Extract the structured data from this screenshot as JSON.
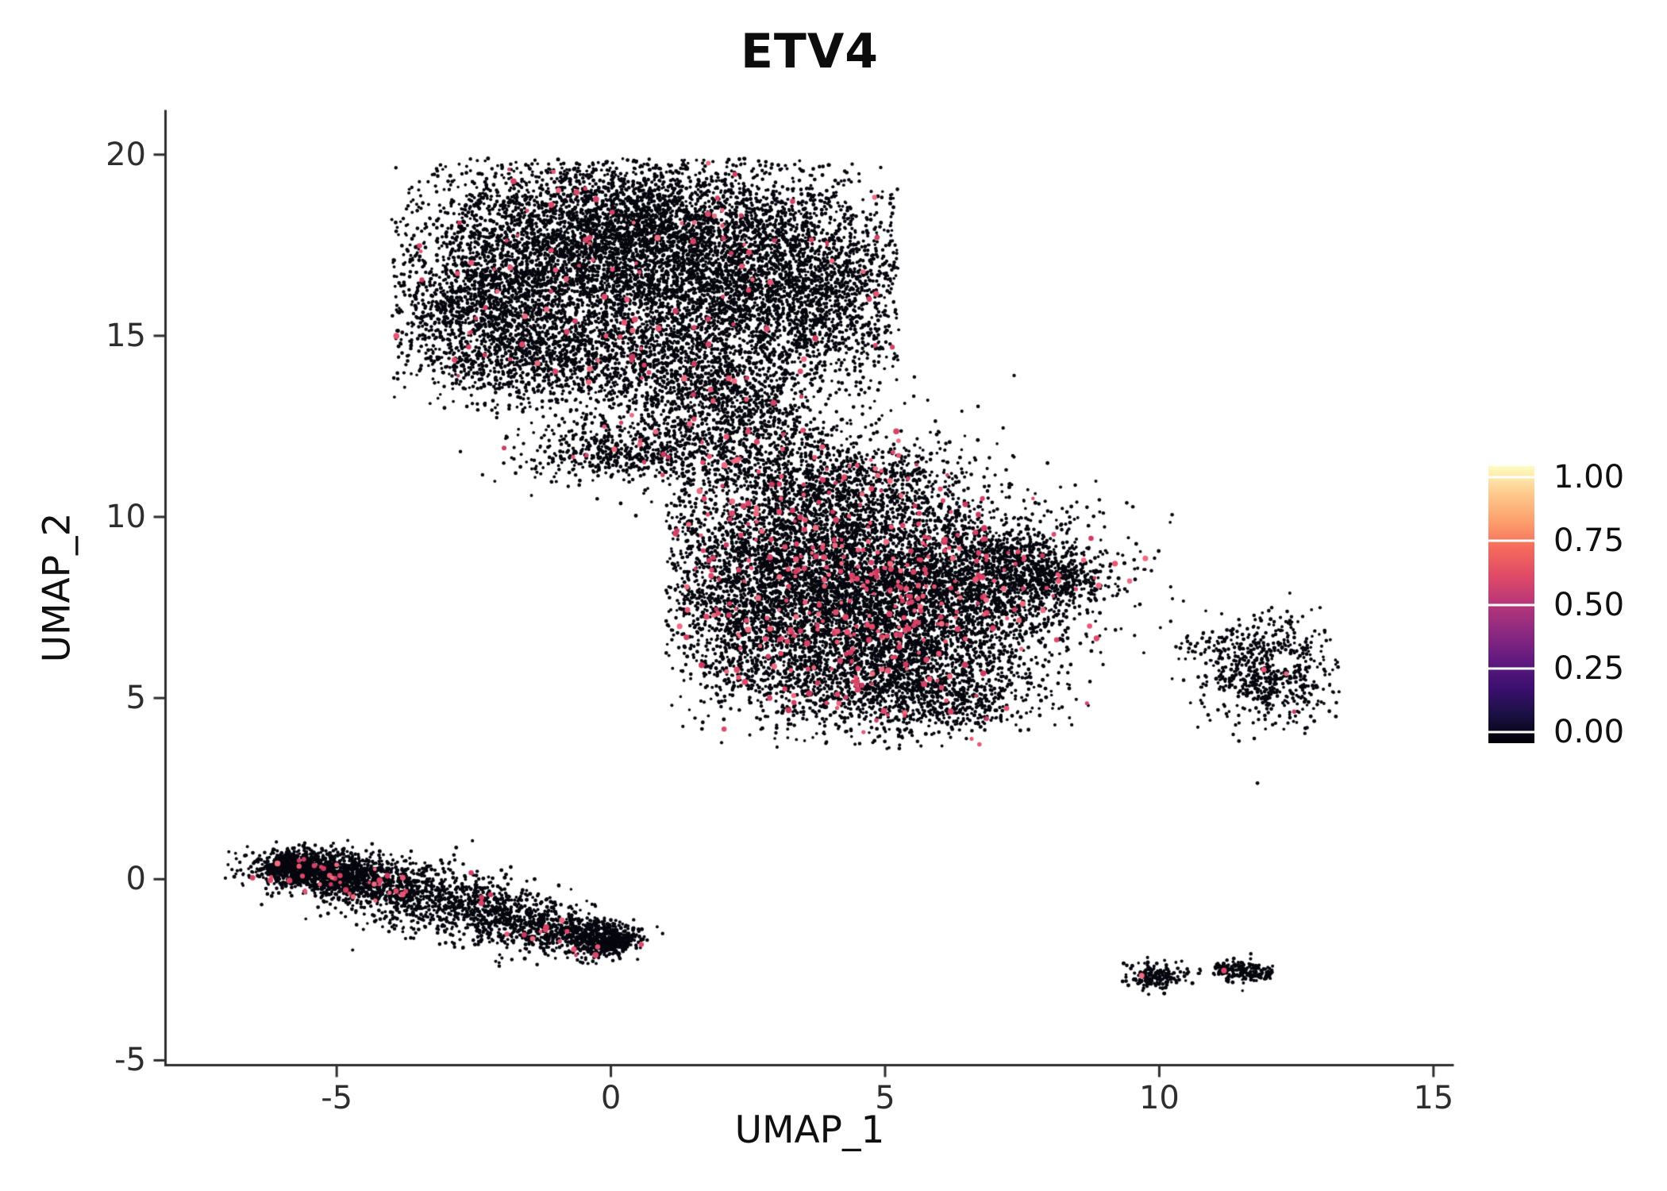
{
  "chart_data": {
    "type": "scatter",
    "title": "ETV4",
    "xlabel": "UMAP_1",
    "ylabel": "UMAP_2",
    "x_ticks": [
      -5,
      0,
      5,
      10,
      15
    ],
    "y_ticks": [
      -5,
      0,
      5,
      10,
      15,
      20
    ],
    "xlim": [
      -8.1,
      15.35
    ],
    "ylim": [
      -5.1,
      21.2
    ],
    "grid": false,
    "legend_position": "right",
    "background": "#FFFFFF",
    "point_color": "#06060E",
    "highlight_palette": [
      "#E0486A",
      "#D84166",
      "#EA5574",
      "#CE3A60",
      "#F06A80"
    ],
    "point_radius": 2.1,
    "highlight_radius": 3.0,
    "seed": 1337,
    "colorbar": {
      "tick_labels": [
        "1.00",
        "0.75",
        "0.50",
        "0.25",
        "0.00"
      ],
      "tick_values": [
        1.0,
        0.75,
        0.5,
        0.25,
        0.0
      ],
      "gradient_top_to_bottom": [
        "#FCFDBF",
        "#FEC98D",
        "#FD9F6C",
        "#F4695C",
        "#DE4968",
        "#B63679",
        "#8C2981",
        "#631A80",
        "#3B0F70",
        "#1A1042",
        "#000004"
      ]
    },
    "clusters": [
      {
        "name": "upper-left-large-blob",
        "clip": {
          "ymax": 19.9,
          "xmin": -4.0,
          "xmax": 5.25
        },
        "blobs": [
          {
            "cx": -0.6,
            "cy": 17.1,
            "sx": 1.55,
            "sy": 1.35,
            "n": 3300,
            "pink": 0.012
          },
          {
            "cx": 1.9,
            "cy": 16.9,
            "sx": 1.5,
            "sy": 1.4,
            "n": 2900,
            "pink": 0.012
          },
          {
            "cx": 3.8,
            "cy": 16.2,
            "sx": 0.95,
            "sy": 1.25,
            "n": 1300,
            "pink": 0.01
          },
          {
            "cx": -2.4,
            "cy": 15.7,
            "sx": 0.85,
            "sy": 0.95,
            "n": 900,
            "pink": 0.012
          },
          {
            "cx": -1.4,
            "cy": 14.3,
            "sx": 1.1,
            "sy": 0.6,
            "n": 650,
            "pink": 0.012
          },
          {
            "cx": 1.1,
            "cy": 14.2,
            "sx": 1.3,
            "sy": 0.8,
            "n": 900,
            "pink": 0.015
          },
          {
            "cx": 0.4,
            "cy": 18.55,
            "sx": 1.6,
            "sy": 0.7,
            "n": 700,
            "pink": 0.01
          }
        ]
      },
      {
        "name": "bridge-between-blobs",
        "clip": {},
        "blobs": [
          {
            "cx": 0.25,
            "cy": 11.8,
            "sx": 0.95,
            "sy": 0.42,
            "n": 520,
            "pink": 0.02
          },
          {
            "cx": 1.8,
            "cy": 12.4,
            "sx": 1.0,
            "sy": 0.8,
            "n": 420,
            "pink": 0.02
          },
          {
            "cx": 2.9,
            "cy": 12.0,
            "sx": 0.75,
            "sy": 0.95,
            "n": 330,
            "pink": 0.02
          },
          {
            "cx": 2.2,
            "cy": 13.5,
            "sx": 0.6,
            "sy": 0.55,
            "n": 220,
            "pink": 0.015
          }
        ]
      },
      {
        "name": "central-large-blob-high-expression",
        "clip": {
          "xmin": 1.0,
          "ymin": 3.6
        },
        "blobs": [
          {
            "cx": 3.6,
            "cy": 8.9,
            "sx": 1.5,
            "sy": 1.5,
            "n": 3400,
            "pink": 0.045
          },
          {
            "cx": 5.4,
            "cy": 7.6,
            "sx": 1.5,
            "sy": 1.35,
            "n": 2900,
            "pink": 0.045
          },
          {
            "cx": 4.5,
            "cy": 5.7,
            "sx": 1.3,
            "sy": 0.85,
            "n": 1400,
            "pink": 0.03
          },
          {
            "cx": 6.9,
            "cy": 8.5,
            "sx": 0.9,
            "sy": 0.8,
            "n": 900,
            "pink": 0.035
          },
          {
            "cx": 8.1,
            "cy": 8.3,
            "sx": 0.55,
            "sy": 0.4,
            "n": 380,
            "pink": 0.02
          },
          {
            "cx": 4.4,
            "cy": 10.9,
            "sx": 1.15,
            "sy": 0.6,
            "n": 620,
            "pink": 0.03
          },
          {
            "cx": 6.2,
            "cy": 5.0,
            "sx": 0.8,
            "sy": 0.5,
            "n": 380,
            "pink": 0.02
          },
          {
            "cx": 2.4,
            "cy": 7.3,
            "sx": 0.7,
            "sy": 0.9,
            "n": 500,
            "pink": 0.03
          }
        ]
      },
      {
        "name": "right-small-ring-cluster",
        "clip": {
          "xmax": 13.3
        },
        "blobs": [
          {
            "cx": 12.0,
            "cy": 5.8,
            "sx": 0.62,
            "sy": 0.72,
            "n": 680,
            "pink": 0.006,
            "hole": {
              "x": 12.28,
              "y": 6.02,
              "r": 0.22
            }
          },
          {
            "cx": 10.85,
            "cy": 6.55,
            "sx": 0.3,
            "sy": 0.13,
            "n": 22,
            "pink": 0
          }
        ]
      },
      {
        "name": "lower-left-diagonal-streak",
        "clip": {},
        "blobs": [
          {
            "type": "streak",
            "x1": -6.15,
            "y1": 0.5,
            "x2": 0.3,
            "y2": -1.85,
            "wmin": 0.18,
            "wamp": 0.3,
            "n": 2500,
            "pink": 0.013
          },
          {
            "cx": -5.6,
            "cy": 0.28,
            "sx": 0.55,
            "sy": 0.3,
            "n": 500,
            "pink": 0.02
          },
          {
            "cx": -4.6,
            "cy": 0.0,
            "sx": 0.5,
            "sy": 0.28,
            "n": 350,
            "pink": 0.02
          },
          {
            "cx": -0.1,
            "cy": -1.62,
            "sx": 0.4,
            "sy": 0.22,
            "n": 250,
            "pink": 0.01
          }
        ]
      },
      {
        "name": "lower-right-small-clusters",
        "clip": {},
        "blobs": [
          {
            "cx": 9.9,
            "cy": -2.68,
            "sx": 0.26,
            "sy": 0.2,
            "n": 170,
            "pink": 0.012
          },
          {
            "type": "streak",
            "x1": 11.0,
            "y1": -2.45,
            "x2": 12.05,
            "y2": -2.62,
            "wmin": 0.1,
            "wamp": 0.06,
            "n": 190,
            "pink": 0.006
          },
          {
            "cx": 10.6,
            "cy": -2.6,
            "sx": 0.12,
            "sy": 0.07,
            "n": 12,
            "pink": 0
          }
        ]
      }
    ],
    "extra_points": [
      {
        "x": 6.72,
        "y": 3.72,
        "c": "pink"
      },
      {
        "x": 8.82,
        "y": 8.32,
        "c": "pink"
      },
      {
        "x": 9.68,
        "y": -2.66,
        "c": "pink"
      },
      {
        "x": 11.18,
        "y": -2.52,
        "c": "pink"
      },
      {
        "x": -0.25,
        "y": 10.5,
        "c": "black"
      },
      {
        "x": 0.6,
        "y": 10.65,
        "c": "black"
      },
      {
        "x": 9.2,
        "y": 8.15,
        "c": "black"
      },
      {
        "x": 1.5,
        "y": 10.9,
        "c": "black"
      },
      {
        "x": 3.4,
        "y": 10.2,
        "c": "black"
      }
    ]
  }
}
